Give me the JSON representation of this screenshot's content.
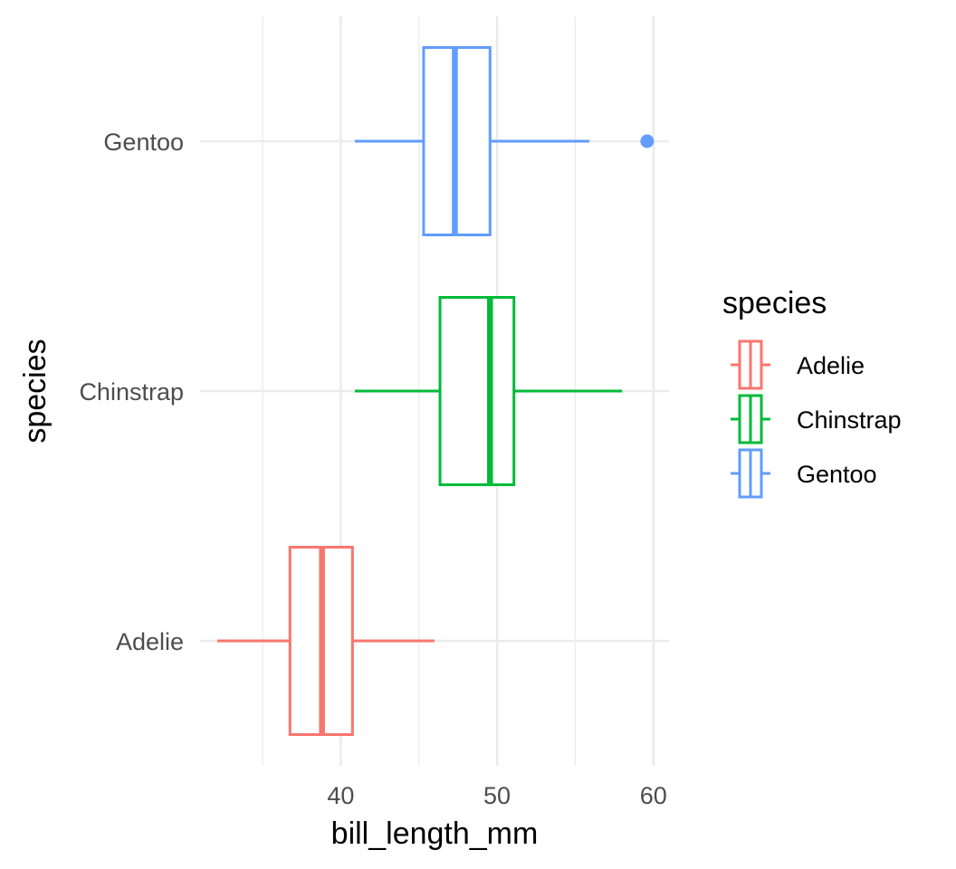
{
  "chart_data": {
    "type": "boxplot",
    "orientation": "horizontal",
    "title": "",
    "xlabel": "bill_length_mm",
    "ylabel": "species",
    "xlim": [
      31,
      61
    ],
    "x_ticks": [
      40,
      50,
      60
    ],
    "x_minor_ticks": [
      35,
      45,
      55
    ],
    "grid": true,
    "categories": [
      "Adelie",
      "Chinstrap",
      "Gentoo"
    ],
    "series": [
      {
        "name": "Adelie",
        "color": "#F8766D",
        "min": 32.1,
        "q1": 36.75,
        "median": 38.8,
        "q3": 40.75,
        "max": 46.0,
        "outliers": []
      },
      {
        "name": "Chinstrap",
        "color": "#00BA38",
        "min": 40.9,
        "q1": 46.35,
        "median": 49.55,
        "q3": 51.08,
        "max": 58.0,
        "outliers": []
      },
      {
        "name": "Gentoo",
        "color": "#619CFF",
        "min": 40.9,
        "q1": 45.3,
        "median": 47.3,
        "q3": 49.55,
        "max": 55.9,
        "outliers": [
          59.6
        ]
      }
    ],
    "legend": {
      "title": "species",
      "position": "right",
      "entries": [
        "Adelie",
        "Chinstrap",
        "Gentoo"
      ]
    }
  }
}
